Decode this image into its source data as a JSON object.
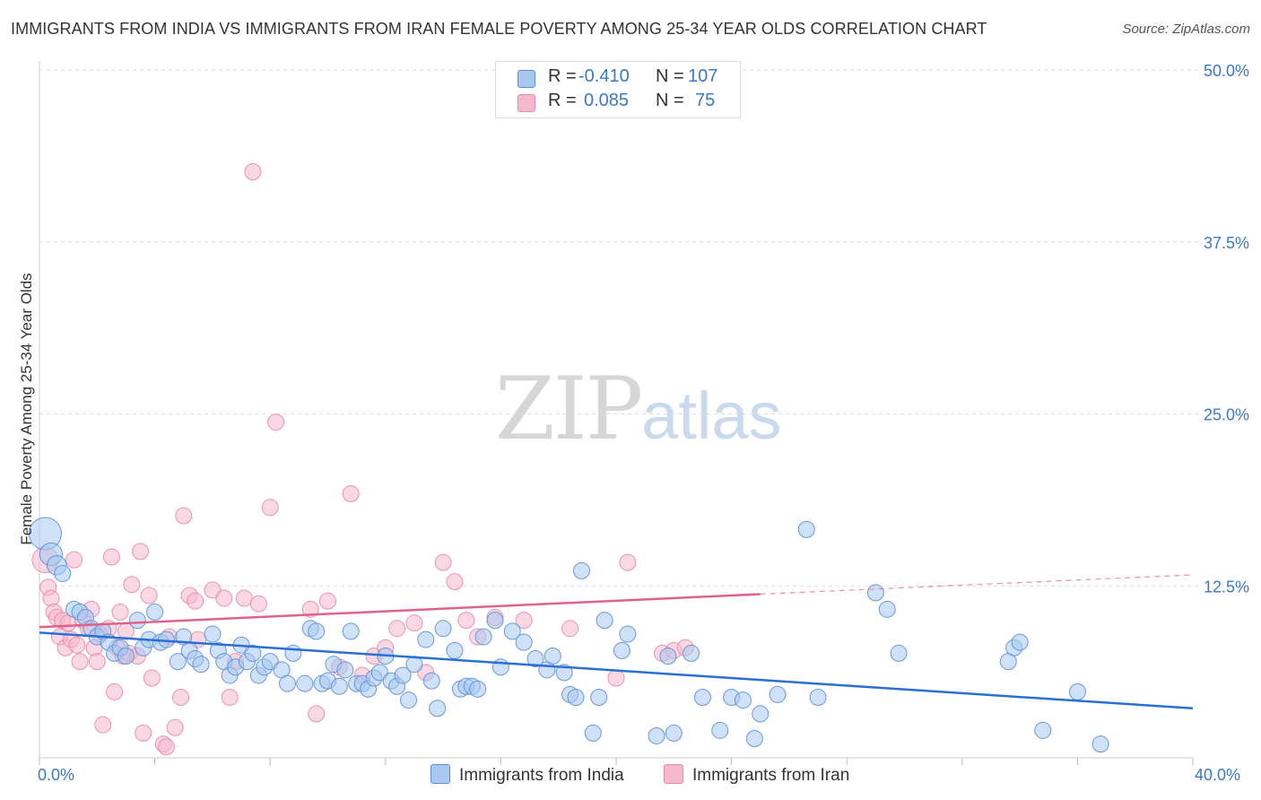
{
  "title": "IMMIGRANTS FROM INDIA VS IMMIGRANTS FROM IRAN FEMALE POVERTY AMONG 25-34 YEAR OLDS CORRELATION CHART",
  "source": "Source: ZipAtlas.com",
  "watermark": {
    "zip": "ZIP",
    "atlas": "atlas"
  },
  "legend_top": [
    {
      "r_label": "R = ",
      "r_value": "-0.410",
      "n_label": "N = ",
      "n_value": "107",
      "color": "#a8c8f0"
    },
    {
      "r_label": "R = ",
      "r_value": "0.085",
      "n_label": "N = ",
      "n_value": "75",
      "color": "#f5b8cc"
    }
  ],
  "legend_bottom": [
    {
      "label": "Immigrants from India",
      "color": "#a8c8f0"
    },
    {
      "label": "Immigrants from Iran",
      "color": "#f5b8cc"
    }
  ],
  "colors": {
    "india_fill": "#a8c8f0",
    "india_stroke": "#5b8fd6",
    "india_line": "#2a6fd6",
    "iran_fill": "#f5b8cc",
    "iran_stroke": "#e888aa",
    "iran_line": "#e0628a",
    "axis_text": "#3a78c9",
    "grid": "#dddddd"
  },
  "chart_data": {
    "type": "scatter",
    "title": "IMMIGRANTS FROM INDIA VS IMMIGRANTS FROM IRAN FEMALE POVERTY AMONG 25-34 YEAR OLDS CORRELATION CHART",
    "xlabel": "",
    "ylabel": "Female Poverty Among 25-34 Year Olds",
    "xlim": [
      0,
      40
    ],
    "ylim": [
      0,
      50
    ],
    "x_tick_labels": [
      "0.0%",
      "40.0%"
    ],
    "y_ticks": [
      12.5,
      25.0,
      37.5,
      50.0
    ],
    "y_tick_labels": [
      "12.5%",
      "25.0%",
      "37.5%",
      "50.0%"
    ],
    "grid": true,
    "legend": "top-center",
    "series": [
      {
        "name": "Immigrants from India",
        "r": -0.41,
        "n": 107,
        "trend": {
          "x0": 0,
          "y0": 9.1,
          "x1": 40,
          "y1": 3.6
        },
        "points": [
          [
            0.2,
            16.3,
            2.0
          ],
          [
            0.4,
            14.8,
            1.4
          ],
          [
            0.6,
            14.0,
            1.2
          ],
          [
            0.8,
            13.4,
            1.0
          ],
          [
            1.2,
            10.8,
            1.0
          ],
          [
            1.4,
            10.6,
            1.0
          ],
          [
            1.6,
            10.2,
            1.0
          ],
          [
            1.8,
            9.4,
            1.0
          ],
          [
            2.0,
            8.8,
            1.0
          ],
          [
            2.2,
            9.2,
            1.0
          ],
          [
            2.4,
            8.4,
            1.0
          ],
          [
            2.6,
            7.6,
            1.0
          ],
          [
            2.8,
            8.0,
            1.0
          ],
          [
            3.0,
            7.4,
            1.0
          ],
          [
            3.4,
            10.0,
            1.0
          ],
          [
            3.6,
            8.0,
            1.0
          ],
          [
            3.8,
            8.6,
            1.0
          ],
          [
            4.0,
            10.6,
            1.0
          ],
          [
            4.2,
            8.4,
            1.0
          ],
          [
            4.4,
            8.6,
            1.0
          ],
          [
            4.8,
            7.0,
            1.0
          ],
          [
            5.0,
            8.8,
            1.0
          ],
          [
            5.2,
            7.8,
            1.0
          ],
          [
            5.4,
            7.2,
            1.0
          ],
          [
            5.6,
            6.8,
            1.0
          ],
          [
            6.0,
            9.0,
            1.0
          ],
          [
            6.2,
            7.8,
            1.0
          ],
          [
            6.4,
            7.0,
            1.0
          ],
          [
            6.6,
            6.0,
            1.0
          ],
          [
            6.8,
            6.6,
            1.0
          ],
          [
            7.0,
            8.2,
            1.0
          ],
          [
            7.2,
            7.0,
            1.0
          ],
          [
            7.4,
            7.6,
            1.0
          ],
          [
            7.6,
            6.0,
            1.0
          ],
          [
            7.8,
            6.6,
            1.0
          ],
          [
            8.0,
            7.0,
            1.0
          ],
          [
            8.4,
            6.4,
            1.0
          ],
          [
            8.6,
            5.4,
            1.0
          ],
          [
            8.8,
            7.6,
            1.0
          ],
          [
            9.2,
            5.4,
            1.0
          ],
          [
            9.4,
            9.4,
            1.0
          ],
          [
            9.6,
            9.2,
            1.0
          ],
          [
            9.8,
            5.4,
            1.0
          ],
          [
            10.0,
            5.6,
            1.0
          ],
          [
            10.2,
            6.8,
            1.0
          ],
          [
            10.4,
            5.2,
            1.0
          ],
          [
            10.6,
            6.4,
            1.0
          ],
          [
            10.8,
            9.2,
            1.0
          ],
          [
            11.0,
            5.4,
            1.0
          ],
          [
            11.2,
            5.4,
            1.0
          ],
          [
            11.4,
            5.0,
            1.0
          ],
          [
            11.6,
            5.8,
            1.0
          ],
          [
            11.8,
            6.2,
            1.0
          ],
          [
            12.0,
            7.4,
            1.0
          ],
          [
            12.2,
            5.6,
            1.0
          ],
          [
            12.4,
            5.2,
            1.0
          ],
          [
            12.6,
            6.0,
            1.0
          ],
          [
            12.8,
            4.2,
            1.0
          ],
          [
            13.0,
            6.8,
            1.0
          ],
          [
            13.4,
            8.6,
            1.0
          ],
          [
            13.6,
            5.6,
            1.0
          ],
          [
            13.8,
            3.6,
            1.0
          ],
          [
            14.0,
            9.4,
            1.0
          ],
          [
            14.4,
            7.8,
            1.0
          ],
          [
            14.6,
            5.0,
            1.0
          ],
          [
            14.8,
            5.2,
            1.0
          ],
          [
            15.0,
            5.2,
            1.0
          ],
          [
            15.2,
            5.0,
            1.0
          ],
          [
            15.4,
            8.8,
            1.0
          ],
          [
            15.8,
            10.0,
            1.0
          ],
          [
            16.0,
            6.6,
            1.0
          ],
          [
            16.4,
            9.2,
            1.0
          ],
          [
            16.8,
            8.4,
            1.0
          ],
          [
            17.2,
            7.2,
            1.0
          ],
          [
            17.6,
            6.4,
            1.0
          ],
          [
            17.8,
            7.4,
            1.0
          ],
          [
            18.2,
            6.2,
            1.0
          ],
          [
            18.4,
            4.6,
            1.0
          ],
          [
            18.6,
            4.4,
            1.0
          ],
          [
            18.8,
            13.6,
            1.0
          ],
          [
            19.2,
            1.8,
            1.0
          ],
          [
            19.4,
            4.4,
            1.0
          ],
          [
            19.6,
            10.0,
            1.0
          ],
          [
            20.2,
            7.8,
            1.0
          ],
          [
            20.4,
            9.0,
            1.0
          ],
          [
            21.4,
            1.6,
            1.0
          ],
          [
            21.8,
            7.4,
            1.0
          ],
          [
            22.0,
            1.8,
            1.0
          ],
          [
            22.6,
            7.6,
            1.0
          ],
          [
            23.0,
            4.4,
            1.0
          ],
          [
            23.6,
            2.0,
            1.0
          ],
          [
            24.0,
            4.4,
            1.0
          ],
          [
            24.4,
            4.2,
            1.0
          ],
          [
            24.8,
            1.4,
            1.0
          ],
          [
            25.0,
            3.2,
            1.0
          ],
          [
            25.6,
            4.6,
            1.0
          ],
          [
            26.6,
            16.6,
            1.0
          ],
          [
            27.0,
            4.4,
            1.0
          ],
          [
            29.0,
            12.0,
            1.0
          ],
          [
            29.4,
            10.8,
            1.0
          ],
          [
            29.8,
            7.6,
            1.0
          ],
          [
            33.6,
            7.0,
            1.0
          ],
          [
            33.8,
            8.0,
            1.0
          ],
          [
            34.0,
            8.4,
            1.0
          ],
          [
            34.8,
            2.0,
            1.0
          ],
          [
            36.0,
            4.8,
            1.0
          ],
          [
            36.8,
            1.0,
            1.0
          ]
        ]
      },
      {
        "name": "Immigrants from Iran",
        "r": 0.085,
        "n": 75,
        "trend": {
          "x0": 0,
          "y0": 9.5,
          "x1": 25.0,
          "y1": 11.9,
          "dash_to_x": 40,
          "dash_to_y": 13.3
        },
        "points": [
          [
            0.2,
            14.4,
            1.6
          ],
          [
            0.3,
            12.4,
            1.0
          ],
          [
            0.4,
            11.6,
            1.0
          ],
          [
            0.5,
            10.6,
            1.0
          ],
          [
            0.6,
            10.2,
            1.0
          ],
          [
            0.7,
            8.8,
            1.0
          ],
          [
            0.8,
            10.0,
            1.0
          ],
          [
            0.9,
            8.0,
            1.0
          ],
          [
            1.0,
            9.8,
            1.0
          ],
          [
            1.1,
            8.6,
            1.0
          ],
          [
            1.2,
            14.4,
            1.0
          ],
          [
            1.3,
            8.2,
            1.0
          ],
          [
            1.4,
            7.0,
            1.0
          ],
          [
            1.5,
            10.0,
            1.0
          ],
          [
            1.7,
            9.4,
            1.0
          ],
          [
            1.8,
            10.8,
            1.0
          ],
          [
            1.9,
            8.0,
            1.0
          ],
          [
            2.0,
            7.0,
            1.0
          ],
          [
            2.1,
            9.0,
            1.0
          ],
          [
            2.2,
            2.4,
            1.0
          ],
          [
            2.4,
            9.4,
            1.0
          ],
          [
            2.5,
            14.6,
            1.0
          ],
          [
            2.6,
            4.8,
            1.0
          ],
          [
            2.7,
            8.0,
            1.0
          ],
          [
            2.8,
            10.6,
            1.0
          ],
          [
            2.9,
            7.4,
            1.0
          ],
          [
            3.0,
            9.2,
            1.0
          ],
          [
            3.1,
            7.6,
            1.0
          ],
          [
            3.2,
            12.6,
            1.0
          ],
          [
            3.4,
            7.4,
            1.0
          ],
          [
            3.5,
            15.0,
            1.0
          ],
          [
            3.6,
            1.8,
            1.0
          ],
          [
            3.8,
            11.8,
            1.0
          ],
          [
            3.9,
            5.8,
            1.0
          ],
          [
            4.3,
            1.0,
            1.0
          ],
          [
            4.4,
            0.8,
            1.0
          ],
          [
            4.5,
            8.8,
            1.0
          ],
          [
            4.7,
            2.2,
            1.0
          ],
          [
            4.9,
            4.4,
            1.0
          ],
          [
            5.0,
            17.6,
            1.0
          ],
          [
            5.2,
            11.8,
            1.0
          ],
          [
            5.4,
            11.4,
            1.0
          ],
          [
            5.5,
            8.6,
            1.0
          ],
          [
            6.0,
            12.2,
            1.0
          ],
          [
            6.4,
            11.6,
            1.0
          ],
          [
            6.6,
            4.4,
            1.0
          ],
          [
            6.8,
            7.0,
            1.0
          ],
          [
            7.1,
            11.6,
            1.0
          ],
          [
            7.4,
            42.6,
            1.0
          ],
          [
            7.6,
            11.2,
            1.0
          ],
          [
            8.0,
            18.2,
            1.0
          ],
          [
            8.2,
            24.4,
            1.0
          ],
          [
            9.4,
            10.8,
            1.0
          ],
          [
            9.6,
            3.2,
            1.0
          ],
          [
            10.0,
            11.4,
            1.0
          ],
          [
            10.4,
            6.6,
            1.0
          ],
          [
            10.8,
            19.2,
            1.0
          ],
          [
            11.2,
            6.0,
            1.0
          ],
          [
            11.6,
            7.4,
            1.0
          ],
          [
            12.0,
            8.0,
            1.0
          ],
          [
            12.4,
            9.4,
            1.0
          ],
          [
            13.0,
            9.8,
            1.0
          ],
          [
            13.4,
            6.2,
            1.0
          ],
          [
            14.0,
            14.2,
            1.0
          ],
          [
            14.4,
            12.8,
            1.0
          ],
          [
            14.8,
            10.0,
            1.0
          ],
          [
            15.2,
            8.8,
            1.0
          ],
          [
            15.8,
            10.2,
            1.0
          ],
          [
            16.8,
            10.0,
            1.0
          ],
          [
            18.4,
            9.4,
            1.0
          ],
          [
            20.0,
            5.8,
            1.0
          ],
          [
            20.4,
            14.2,
            1.0
          ],
          [
            21.6,
            7.6,
            1.0
          ],
          [
            22.0,
            7.8,
            1.0
          ],
          [
            22.4,
            8.0,
            1.0
          ]
        ]
      }
    ]
  }
}
